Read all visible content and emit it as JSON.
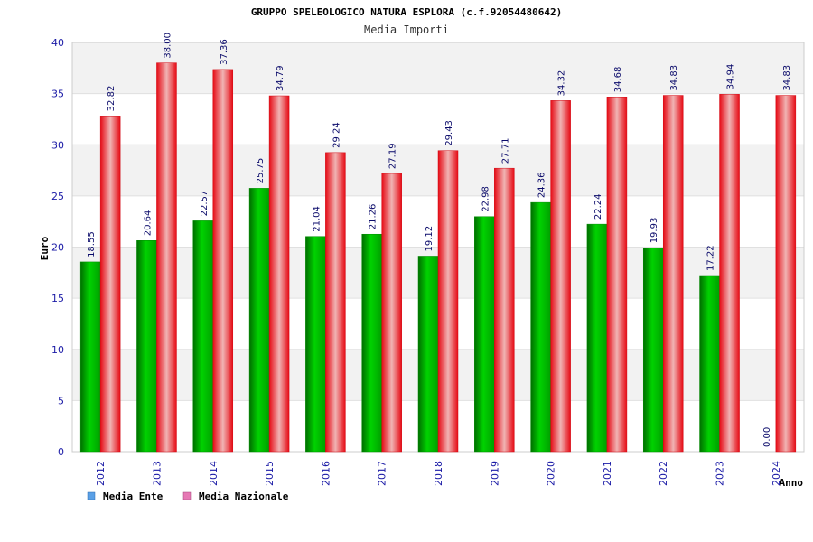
{
  "chart_data": {
    "type": "bar",
    "title": "GRUPPO SPELEOLOGICO NATURA ESPLORA (c.f.92054480642)",
    "subtitle": "Media Importi",
    "xlabel": "Anno",
    "ylabel": "Euro",
    "ylim": [
      0,
      40
    ],
    "yticks": [
      0,
      5,
      10,
      15,
      20,
      25,
      30,
      35,
      40
    ],
    "categories": [
      "2012",
      "2013",
      "2014",
      "2015",
      "2016",
      "2017",
      "2018",
      "2019",
      "2020",
      "2021",
      "2022",
      "2023",
      "2024"
    ],
    "series": [
      {
        "name": "Media Ente",
        "values": [
          18.55,
          20.64,
          22.57,
          25.75,
          21.04,
          21.26,
          19.12,
          22.98,
          24.36,
          22.24,
          19.93,
          17.22,
          0.0
        ],
        "labels": [
          "18.55",
          "20.64",
          "22.57",
          "25.75",
          "21.04",
          "21.26",
          "19.12",
          "22.98",
          "24.36",
          "22.24",
          "19.93",
          "17.22",
          "0.00"
        ]
      },
      {
        "name": "Media Nazionale",
        "values": [
          32.82,
          38.0,
          37.36,
          34.79,
          29.24,
          27.19,
          29.43,
          27.71,
          34.32,
          34.68,
          34.83,
          34.94,
          34.83
        ],
        "labels": [
          "32.82",
          "38.00",
          "37.36",
          "34.79",
          "29.24",
          "27.19",
          "29.43",
          "27.71",
          "34.32",
          "34.68",
          "34.83",
          "34.94",
          "34.83"
        ]
      }
    ],
    "grid": true,
    "legend_position": "bottom-left",
    "colors": {
      "ente": "#00b400",
      "ente_dark": "#006e00",
      "nazionale": "#e60a14",
      "nazionale_light": "#f0b4b4",
      "legend_ente": "#5aa0e6",
      "legend_nazionale": "#e678b4",
      "band": "#f2f2f2",
      "tick_text": "#1a1aa6"
    }
  }
}
